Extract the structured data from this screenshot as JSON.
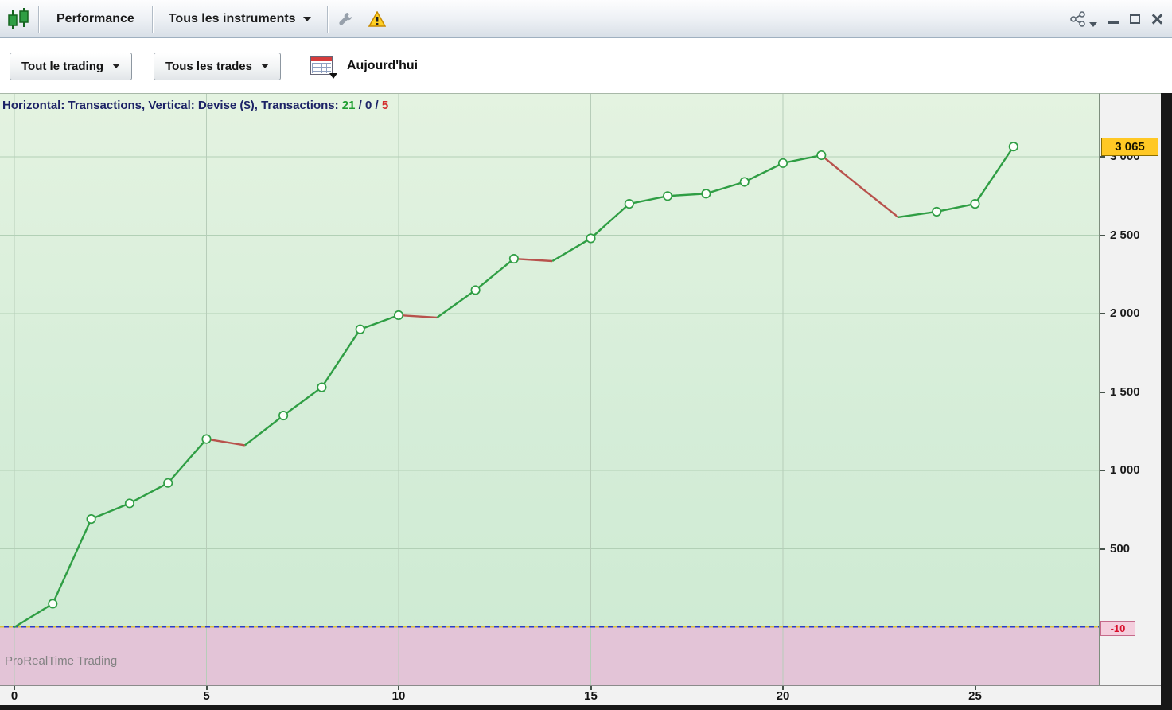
{
  "titlebar": {
    "tab": "Performance",
    "instruments": "Tous les instruments"
  },
  "toolbar": {
    "trading_filter": "Tout le trading",
    "trades_filter": "Tous les trades",
    "date_label": "Aujourd'hui"
  },
  "chart_header": {
    "prefix": "Horizontal: Transactions, Vertical: Devise ($), Transactions: ",
    "wins": "21",
    "sep1": " / ",
    "breakeven": "0",
    "sep2": " / ",
    "losses": "5"
  },
  "watermark": "ProRealTime Trading",
  "axis": {
    "current_badge": "3 065",
    "zero_badge": "-10",
    "zero_level": -10,
    "y_scale": [
      {
        "value": 3000,
        "label": "3 000"
      },
      {
        "value": 2500,
        "label": "2 500"
      },
      {
        "value": 2000,
        "label": "2 000"
      },
      {
        "value": 1500,
        "label": "1 500"
      },
      {
        "value": 1000,
        "label": "1 000"
      },
      {
        "value": 500,
        "label": "500"
      }
    ],
    "x_ticks": [
      0,
      5,
      10,
      15,
      20,
      25
    ]
  },
  "chart_data": {
    "type": "line",
    "xlabel": "Transactions",
    "ylabel": "Devise ($)",
    "trade_counts": {
      "wins": 21,
      "breakeven": 0,
      "losses": 5
    },
    "x": [
      0,
      1,
      2,
      3,
      4,
      5,
      6,
      7,
      8,
      9,
      10,
      11,
      12,
      13,
      14,
      15,
      16,
      17,
      18,
      19,
      20,
      21,
      22,
      23,
      24,
      25,
      26
    ],
    "values": [
      0,
      150,
      690,
      790,
      920,
      1200,
      1160,
      1350,
      1530,
      1900,
      1990,
      1975,
      2150,
      2350,
      2335,
      2480,
      2700,
      2750,
      2765,
      2840,
      2960,
      3010,
      2810,
      2615,
      2650,
      2700,
      3065
    ],
    "colors": {
      "win": "#2f9e44",
      "loss": "#b8524c"
    },
    "final_value": 3065,
    "baseline": -10,
    "ylim": [
      -380,
      3400
    ],
    "grid": true
  }
}
